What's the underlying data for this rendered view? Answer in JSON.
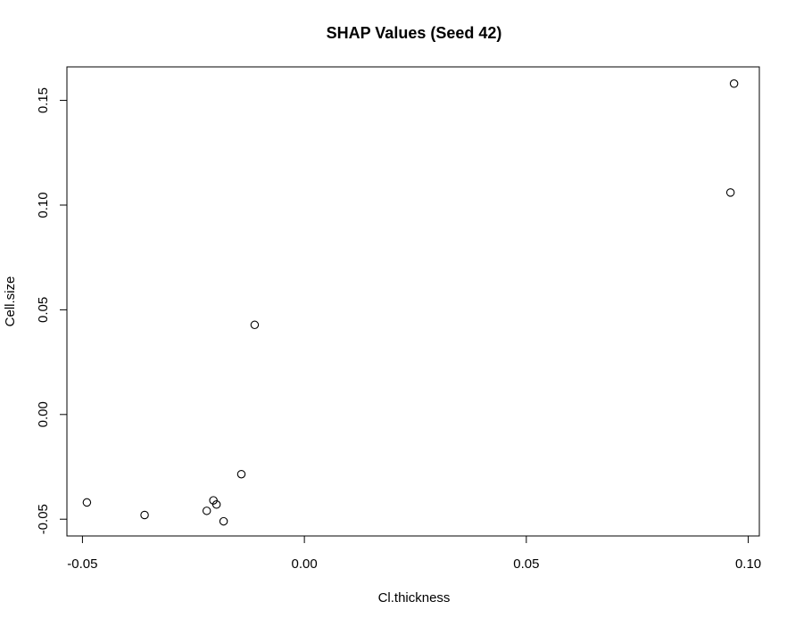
{
  "chart_data": {
    "type": "scatter",
    "title": "SHAP Values (Seed 42)",
    "xlabel": "Cl.thickness",
    "ylabel": "Cell.size",
    "xlim": [
      -0.0535,
      0.1025
    ],
    "ylim": [
      -0.058,
      0.166
    ],
    "xticks": [
      -0.05,
      0.0,
      0.05,
      0.1
    ],
    "xtick_labels": [
      "-0.05",
      "0.00",
      "0.05",
      "0.10"
    ],
    "yticks": [
      -0.05,
      0.0,
      0.05,
      0.1,
      0.15
    ],
    "ytick_labels": [
      "-0.05",
      "0.00",
      "0.05",
      "0.10",
      "0.15"
    ],
    "grid": false,
    "legend": "none",
    "points": [
      {
        "x": -0.049,
        "y": -0.042
      },
      {
        "x": -0.036,
        "y": -0.048
      },
      {
        "x": -0.022,
        "y": -0.046
      },
      {
        "x": -0.0205,
        "y": -0.041
      },
      {
        "x": -0.0198,
        "y": -0.043
      },
      {
        "x": -0.0182,
        "y": -0.051
      },
      {
        "x": -0.0142,
        "y": -0.0285
      },
      {
        "x": -0.0112,
        "y": 0.0428
      },
      {
        "x": 0.096,
        "y": 0.106
      },
      {
        "x": 0.0968,
        "y": 0.158
      }
    ]
  }
}
